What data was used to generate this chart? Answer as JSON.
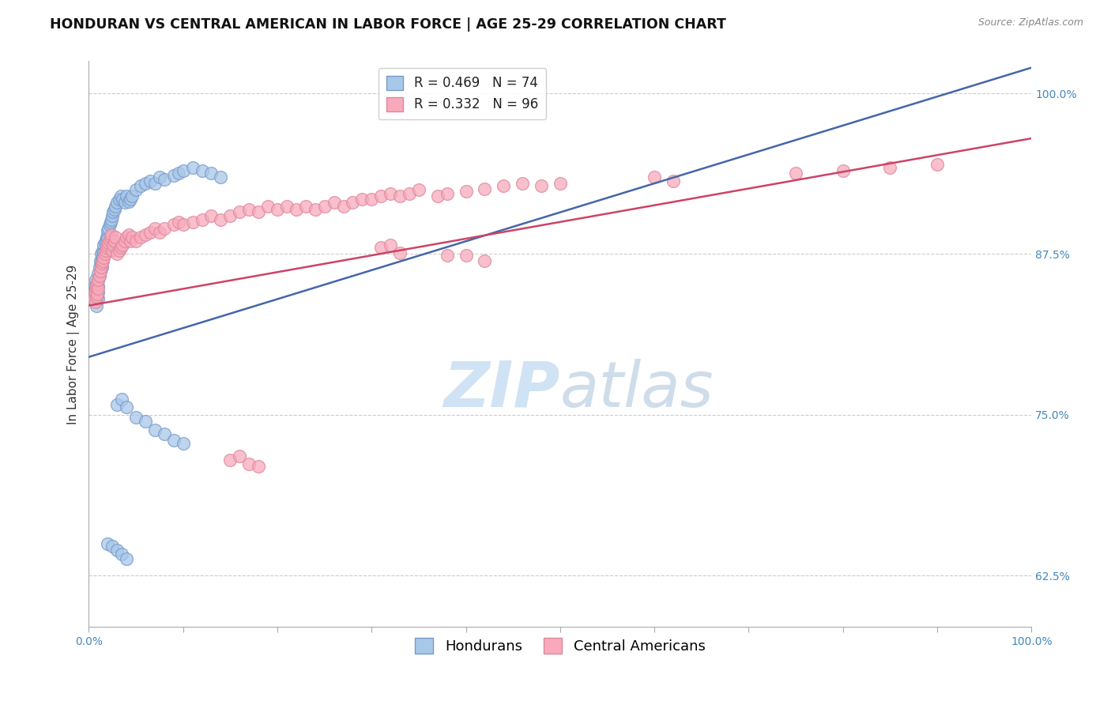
{
  "title": "HONDURAN VS CENTRAL AMERICAN IN LABOR FORCE | AGE 25-29 CORRELATION CHART",
  "source": "Source: ZipAtlas.com",
  "ylabel": "In Labor Force | Age 25-29",
  "ytick_labels": [
    "62.5%",
    "75.0%",
    "87.5%",
    "100.0%"
  ],
  "ytick_values": [
    0.625,
    0.75,
    0.875,
    1.0
  ],
  "xmin": 0.0,
  "xmax": 1.0,
  "ymin": 0.585,
  "ymax": 1.025,
  "blue_R": 0.469,
  "blue_N": 74,
  "pink_R": 0.332,
  "pink_N": 96,
  "blue_scatter_color": "#A8C8E8",
  "blue_edge_color": "#7799CC",
  "pink_scatter_color": "#F8AABC",
  "pink_edge_color": "#DD8899",
  "blue_line_color": "#4466AA",
  "pink_line_color": "#CC4466",
  "legend_label_blue": "Hondurans",
  "legend_label_pink": "Central Americans",
  "watermark_color_zip": "#AACCEE",
  "watermark_color_atlas": "#88AACC",
  "background_color": "#FFFFFF",
  "grid_color": "#CCCCCC",
  "title_color": "#111111",
  "source_color": "#888888",
  "tick_color": "#4488BB",
  "ylabel_color": "#333333",
  "title_fontsize": 12.5,
  "axis_label_fontsize": 11,
  "tick_fontsize": 10,
  "legend_fontsize": 12,
  "blue_line_x0": 0.0,
  "blue_line_x1": 1.0,
  "blue_line_y0": 0.795,
  "blue_line_y1": 1.02,
  "pink_line_x0": 0.0,
  "pink_line_x1": 1.0,
  "pink_line_y0": 0.835,
  "pink_line_y1": 0.965,
  "blue_scatter_x": [
    0.005,
    0.006,
    0.007,
    0.008,
    0.008,
    0.009,
    0.009,
    0.01,
    0.01,
    0.01,
    0.01,
    0.01,
    0.011,
    0.011,
    0.012,
    0.012,
    0.013,
    0.013,
    0.014,
    0.014,
    0.015,
    0.015,
    0.016,
    0.016,
    0.017,
    0.018,
    0.019,
    0.02,
    0.02,
    0.021,
    0.022,
    0.023,
    0.024,
    0.025,
    0.026,
    0.027,
    0.028,
    0.03,
    0.032,
    0.034,
    0.036,
    0.038,
    0.04,
    0.042,
    0.044,
    0.046,
    0.05,
    0.055,
    0.06,
    0.065,
    0.07,
    0.075,
    0.08,
    0.09,
    0.095,
    0.1,
    0.11,
    0.12,
    0.13,
    0.14,
    0.03,
    0.035,
    0.04,
    0.05,
    0.06,
    0.07,
    0.08,
    0.09,
    0.1,
    0.02,
    0.025,
    0.03,
    0.035,
    0.04
  ],
  "blue_scatter_y": [
    0.845,
    0.85,
    0.855,
    0.84,
    0.835,
    0.848,
    0.842,
    0.855,
    0.86,
    0.85,
    0.845,
    0.84,
    0.865,
    0.858,
    0.87,
    0.862,
    0.875,
    0.868,
    0.872,
    0.865,
    0.878,
    0.871,
    0.882,
    0.876,
    0.884,
    0.886,
    0.888,
    0.893,
    0.887,
    0.895,
    0.898,
    0.9,
    0.902,
    0.905,
    0.908,
    0.91,
    0.912,
    0.915,
    0.918,
    0.92,
    0.918,
    0.915,
    0.92,
    0.916,
    0.918,
    0.92,
    0.925,
    0.928,
    0.93,
    0.932,
    0.93,
    0.935,
    0.933,
    0.936,
    0.938,
    0.94,
    0.942,
    0.94,
    0.938,
    0.935,
    0.758,
    0.762,
    0.756,
    0.748,
    0.745,
    0.738,
    0.735,
    0.73,
    0.728,
    0.65,
    0.648,
    0.645,
    0.642,
    0.638
  ],
  "pink_scatter_x": [
    0.005,
    0.006,
    0.007,
    0.007,
    0.008,
    0.008,
    0.009,
    0.009,
    0.01,
    0.01,
    0.011,
    0.012,
    0.013,
    0.014,
    0.015,
    0.016,
    0.017,
    0.018,
    0.019,
    0.02,
    0.021,
    0.022,
    0.023,
    0.024,
    0.025,
    0.026,
    0.027,
    0.028,
    0.03,
    0.032,
    0.034,
    0.036,
    0.038,
    0.04,
    0.042,
    0.044,
    0.046,
    0.05,
    0.055,
    0.06,
    0.065,
    0.07,
    0.075,
    0.08,
    0.09,
    0.095,
    0.1,
    0.11,
    0.12,
    0.13,
    0.14,
    0.15,
    0.16,
    0.17,
    0.18,
    0.19,
    0.2,
    0.21,
    0.22,
    0.23,
    0.24,
    0.25,
    0.26,
    0.27,
    0.28,
    0.29,
    0.3,
    0.31,
    0.32,
    0.33,
    0.34,
    0.35,
    0.37,
    0.38,
    0.4,
    0.42,
    0.44,
    0.46,
    0.48,
    0.5,
    0.15,
    0.16,
    0.17,
    0.18,
    0.31,
    0.32,
    0.33,
    0.38,
    0.4,
    0.42,
    0.6,
    0.62,
    0.75,
    0.8,
    0.85,
    0.9
  ],
  "pink_scatter_y": [
    0.84,
    0.845,
    0.838,
    0.848,
    0.842,
    0.85,
    0.844,
    0.852,
    0.848,
    0.855,
    0.858,
    0.862,
    0.865,
    0.868,
    0.87,
    0.872,
    0.875,
    0.878,
    0.88,
    0.882,
    0.884,
    0.886,
    0.888,
    0.89,
    0.878,
    0.882,
    0.885,
    0.888,
    0.875,
    0.878,
    0.88,
    0.882,
    0.885,
    0.888,
    0.89,
    0.885,
    0.888,
    0.885,
    0.888,
    0.89,
    0.892,
    0.895,
    0.892,
    0.895,
    0.898,
    0.9,
    0.898,
    0.9,
    0.902,
    0.905,
    0.902,
    0.905,
    0.908,
    0.91,
    0.908,
    0.912,
    0.91,
    0.912,
    0.91,
    0.912,
    0.91,
    0.912,
    0.915,
    0.912,
    0.915,
    0.918,
    0.918,
    0.92,
    0.922,
    0.92,
    0.922,
    0.925,
    0.92,
    0.922,
    0.924,
    0.926,
    0.928,
    0.93,
    0.928,
    0.93,
    0.715,
    0.718,
    0.712,
    0.71,
    0.88,
    0.882,
    0.876,
    0.874,
    0.874,
    0.87,
    0.935,
    0.932,
    0.938,
    0.94,
    0.942,
    0.945
  ]
}
